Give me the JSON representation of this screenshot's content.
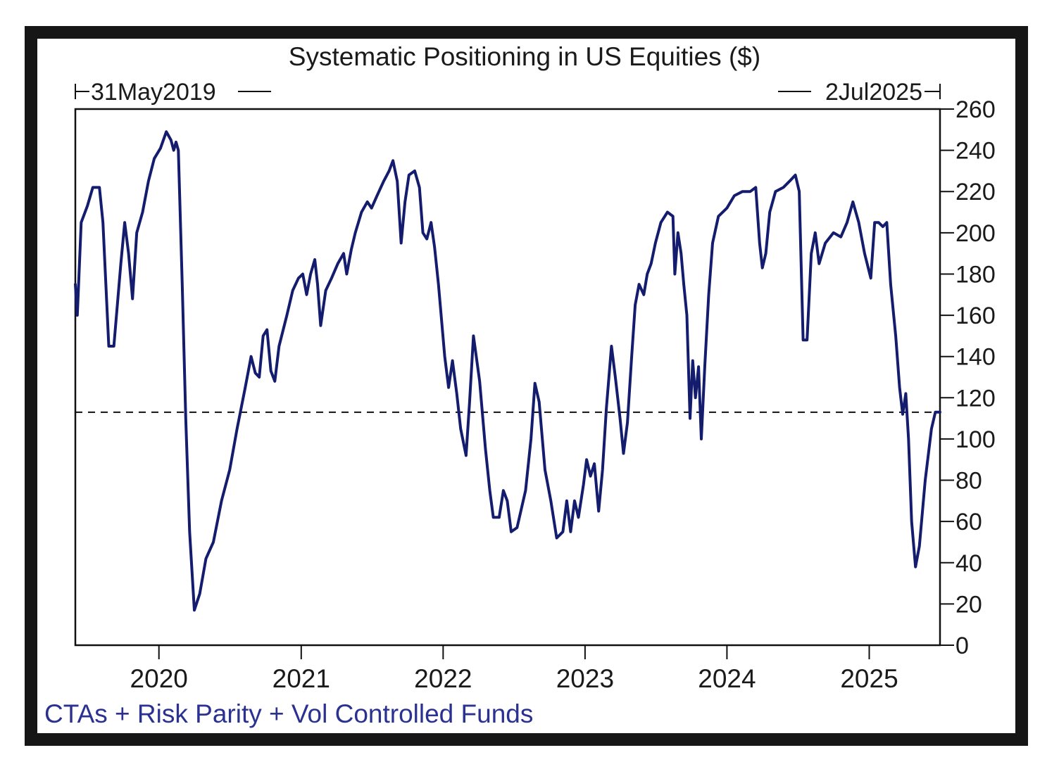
{
  "chart_data": {
    "type": "line",
    "title": "Systematic Positioning in US Equities ($)",
    "start_label": "31May2019",
    "end_label": "2Jul2025",
    "footer_label": "CTAs + Risk Parity + Vol Controlled Funds",
    "xlabel": "",
    "ylabel": "",
    "x_ticks": [
      "2020",
      "2021",
      "2022",
      "2023",
      "2024",
      "2025"
    ],
    "y_ticks": [
      0,
      20,
      40,
      60,
      80,
      100,
      120,
      140,
      160,
      180,
      200,
      220,
      240,
      260
    ],
    "xlim": [
      "2019-05-31",
      "2025-07-02"
    ],
    "ylim": [
      0,
      260
    ],
    "grid": false,
    "reference_line": {
      "y": 113,
      "style": "dashed"
    },
    "colors": {
      "series": "#141c6e",
      "footer": "#2a3191",
      "frame": "#111111",
      "outer_border": "#161616"
    },
    "series": [
      {
        "points": [
          [
            "2019-05-31",
            175
          ],
          [
            "2019-06-05",
            160
          ],
          [
            "2019-06-15",
            205
          ],
          [
            "2019-07-01",
            213
          ],
          [
            "2019-07-15",
            222
          ],
          [
            "2019-08-01",
            222
          ],
          [
            "2019-08-10",
            205
          ],
          [
            "2019-08-25",
            145
          ],
          [
            "2019-09-07",
            145
          ],
          [
            "2019-09-25",
            185
          ],
          [
            "2019-10-05",
            205
          ],
          [
            "2019-10-15",
            190
          ],
          [
            "2019-10-25",
            168
          ],
          [
            "2019-11-05",
            200
          ],
          [
            "2019-11-20",
            210
          ],
          [
            "2019-12-05",
            225
          ],
          [
            "2019-12-20",
            236
          ],
          [
            "2020-01-05",
            241
          ],
          [
            "2020-01-20",
            249
          ],
          [
            "2020-02-01",
            245
          ],
          [
            "2020-02-08",
            240
          ],
          [
            "2020-02-14",
            244
          ],
          [
            "2020-02-20",
            240
          ],
          [
            "2020-03-01",
            175
          ],
          [
            "2020-03-10",
            110
          ],
          [
            "2020-03-20",
            55
          ],
          [
            "2020-04-01",
            17
          ],
          [
            "2020-04-15",
            25
          ],
          [
            "2020-05-01",
            42
          ],
          [
            "2020-05-20",
            50
          ],
          [
            "2020-06-10",
            70
          ],
          [
            "2020-07-01",
            85
          ],
          [
            "2020-07-20",
            105
          ],
          [
            "2020-08-10",
            125
          ],
          [
            "2020-08-25",
            140
          ],
          [
            "2020-09-05",
            132
          ],
          [
            "2020-09-15",
            130
          ],
          [
            "2020-09-25",
            150
          ],
          [
            "2020-10-05",
            153
          ],
          [
            "2020-10-15",
            133
          ],
          [
            "2020-10-25",
            128
          ],
          [
            "2020-11-05",
            145
          ],
          [
            "2020-11-25",
            160
          ],
          [
            "2020-12-10",
            172
          ],
          [
            "2020-12-25",
            178
          ],
          [
            "2021-01-05",
            180
          ],
          [
            "2021-01-15",
            170
          ],
          [
            "2021-01-25",
            180
          ],
          [
            "2021-02-05",
            187
          ],
          [
            "2021-02-12",
            175
          ],
          [
            "2021-02-20",
            155
          ],
          [
            "2021-03-05",
            172
          ],
          [
            "2021-03-20",
            178
          ],
          [
            "2021-04-05",
            185
          ],
          [
            "2021-04-20",
            190
          ],
          [
            "2021-04-28",
            180
          ],
          [
            "2021-05-10",
            192
          ],
          [
            "2021-05-20",
            200
          ],
          [
            "2021-06-05",
            210
          ],
          [
            "2021-06-20",
            215
          ],
          [
            "2021-07-01",
            212
          ],
          [
            "2021-07-15",
            218
          ],
          [
            "2021-08-01",
            225
          ],
          [
            "2021-08-15",
            230
          ],
          [
            "2021-08-25",
            235
          ],
          [
            "2021-09-05",
            225
          ],
          [
            "2021-09-15",
            195
          ],
          [
            "2021-09-25",
            215
          ],
          [
            "2021-10-05",
            228
          ],
          [
            "2021-10-20",
            230
          ],
          [
            "2021-11-01",
            222
          ],
          [
            "2021-11-10",
            200
          ],
          [
            "2021-11-20",
            197
          ],
          [
            "2021-12-01",
            205
          ],
          [
            "2021-12-10",
            193
          ],
          [
            "2021-12-20",
            175
          ],
          [
            "2022-01-05",
            140
          ],
          [
            "2022-01-15",
            125
          ],
          [
            "2022-01-25",
            138
          ],
          [
            "2022-02-05",
            122
          ],
          [
            "2022-02-15",
            105
          ],
          [
            "2022-03-01",
            92
          ],
          [
            "2022-03-10",
            118
          ],
          [
            "2022-03-20",
            150
          ],
          [
            "2022-04-05",
            128
          ],
          [
            "2022-04-20",
            95
          ],
          [
            "2022-05-01",
            75
          ],
          [
            "2022-05-10",
            62
          ],
          [
            "2022-05-25",
            62
          ],
          [
            "2022-06-05",
            75
          ],
          [
            "2022-06-15",
            70
          ],
          [
            "2022-06-25",
            55
          ],
          [
            "2022-07-10",
            57
          ],
          [
            "2022-08-01",
            75
          ],
          [
            "2022-08-15",
            100
          ],
          [
            "2022-08-25",
            127
          ],
          [
            "2022-09-05",
            118
          ],
          [
            "2022-09-20",
            85
          ],
          [
            "2022-10-05",
            70
          ],
          [
            "2022-10-20",
            52
          ],
          [
            "2022-11-05",
            55
          ],
          [
            "2022-11-15",
            70
          ],
          [
            "2022-11-25",
            55
          ],
          [
            "2022-12-05",
            70
          ],
          [
            "2022-12-15",
            62
          ],
          [
            "2022-12-28",
            78
          ],
          [
            "2023-01-05",
            90
          ],
          [
            "2023-01-15",
            82
          ],
          [
            "2023-01-25",
            88
          ],
          [
            "2023-02-05",
            65
          ],
          [
            "2023-02-15",
            85
          ],
          [
            "2023-02-25",
            115
          ],
          [
            "2023-03-10",
            145
          ],
          [
            "2023-03-20",
            130
          ],
          [
            "2023-04-01",
            110
          ],
          [
            "2023-04-10",
            93
          ],
          [
            "2023-04-20",
            108
          ],
          [
            "2023-05-01",
            140
          ],
          [
            "2023-05-10",
            165
          ],
          [
            "2023-05-20",
            175
          ],
          [
            "2023-06-01",
            170
          ],
          [
            "2023-06-10",
            180
          ],
          [
            "2023-06-20",
            185
          ],
          [
            "2023-07-01",
            195
          ],
          [
            "2023-07-15",
            205
          ],
          [
            "2023-08-01",
            210
          ],
          [
            "2023-08-15",
            208
          ],
          [
            "2023-08-20",
            180
          ],
          [
            "2023-08-28",
            200
          ],
          [
            "2023-09-05",
            190
          ],
          [
            "2023-09-12",
            175
          ],
          [
            "2023-09-20",
            160
          ],
          [
            "2023-09-28",
            110
          ],
          [
            "2023-10-05",
            138
          ],
          [
            "2023-10-12",
            120
          ],
          [
            "2023-10-20",
            135
          ],
          [
            "2023-10-27",
            100
          ],
          [
            "2023-11-05",
            135
          ],
          [
            "2023-11-15",
            170
          ],
          [
            "2023-11-25",
            195
          ],
          [
            "2023-12-10",
            208
          ],
          [
            "2024-01-01",
            212
          ],
          [
            "2024-01-20",
            218
          ],
          [
            "2024-02-10",
            220
          ],
          [
            "2024-03-01",
            220
          ],
          [
            "2024-03-15",
            222
          ],
          [
            "2024-03-25",
            195
          ],
          [
            "2024-04-01",
            183
          ],
          [
            "2024-04-10",
            190
          ],
          [
            "2024-04-20",
            210
          ],
          [
            "2024-05-05",
            220
          ],
          [
            "2024-05-25",
            222
          ],
          [
            "2024-06-10",
            225
          ],
          [
            "2024-06-25",
            228
          ],
          [
            "2024-07-05",
            220
          ],
          [
            "2024-07-15",
            148
          ],
          [
            "2024-07-25",
            148
          ],
          [
            "2024-08-05",
            190
          ],
          [
            "2024-08-15",
            200
          ],
          [
            "2024-08-25",
            185
          ],
          [
            "2024-09-10",
            195
          ],
          [
            "2024-10-01",
            200
          ],
          [
            "2024-10-20",
            198
          ],
          [
            "2024-11-05",
            205
          ],
          [
            "2024-11-20",
            215
          ],
          [
            "2024-12-05",
            205
          ],
          [
            "2024-12-20",
            190
          ],
          [
            "2025-01-05",
            178
          ],
          [
            "2025-01-15",
            205
          ],
          [
            "2025-01-25",
            205
          ],
          [
            "2025-02-05",
            203
          ],
          [
            "2025-02-15",
            205
          ],
          [
            "2025-02-25",
            175
          ],
          [
            "2025-03-10",
            150
          ],
          [
            "2025-03-20",
            125
          ],
          [
            "2025-03-28",
            112
          ],
          [
            "2025-04-05",
            122
          ],
          [
            "2025-04-12",
            100
          ],
          [
            "2025-04-20",
            60
          ],
          [
            "2025-04-30",
            38
          ],
          [
            "2025-05-10",
            48
          ],
          [
            "2025-05-25",
            80
          ],
          [
            "2025-06-10",
            105
          ],
          [
            "2025-06-20",
            113
          ],
          [
            "2025-07-02",
            113
          ]
        ]
      }
    ]
  }
}
